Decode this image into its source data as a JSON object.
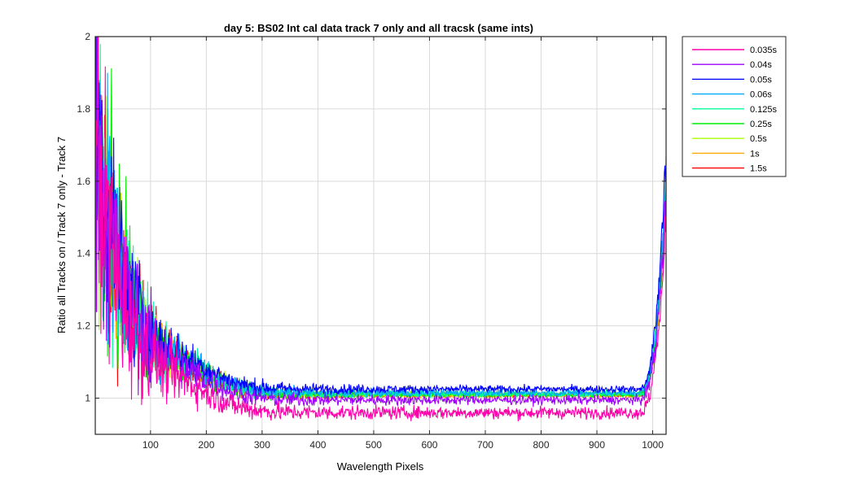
{
  "chart_data": {
    "type": "line",
    "title": "day 5: BS02   Int cal data track 7 only and all tracsk (same ints)",
    "xlabel": "Wavelength Pixels",
    "ylabel": "Ratio all Tracks on / Track 7 only - Track 7",
    "xlim": [
      1,
      1024
    ],
    "ylim": [
      0.9,
      2.0
    ],
    "xticks": [
      100,
      200,
      300,
      400,
      500,
      600,
      700,
      800,
      900,
      1000
    ],
    "yticks": [
      1,
      1.2,
      1.4,
      1.6,
      1.8,
      2
    ],
    "ytick_labels": [
      "1",
      "1.2",
      "1.4",
      "1.6",
      "1.8",
      "2"
    ],
    "grid": true,
    "legend_position": "outside-top-right",
    "series": [
      {
        "name": "0.035s",
        "color": "#ff00aa",
        "plateau": 0.96,
        "noise": 0.012,
        "end": 1.5
      },
      {
        "name": "0.04s",
        "color": "#a000ff",
        "plateau": 0.995,
        "noise": 0.009,
        "end": 1.55
      },
      {
        "name": "0.05s",
        "color": "#0000ff",
        "plateau": 1.025,
        "noise": 0.007,
        "end": 1.68
      },
      {
        "name": "0.06s",
        "color": "#00a8ff",
        "plateau": 1.015,
        "noise": 0.007,
        "end": 1.62
      },
      {
        "name": "0.125s",
        "color": "#00ff99",
        "plateau": 1.012,
        "noise": 0.006,
        "end": 1.6
      },
      {
        "name": "0.25s",
        "color": "#00ee00",
        "plateau": 1.01,
        "noise": 0.005,
        "end": 1.58
      },
      {
        "name": "0.5s",
        "color": "#aaff00",
        "plateau": 1.01,
        "noise": 0.005,
        "end": 1.58
      },
      {
        "name": "1s",
        "color": "#ffaa00",
        "plateau": 1.008,
        "noise": 0.004,
        "end": 1.56
      },
      {
        "name": "1.5s",
        "color": "#ff0000",
        "plateau": 1.008,
        "noise": 0.004,
        "end": 1.56
      }
    ]
  }
}
